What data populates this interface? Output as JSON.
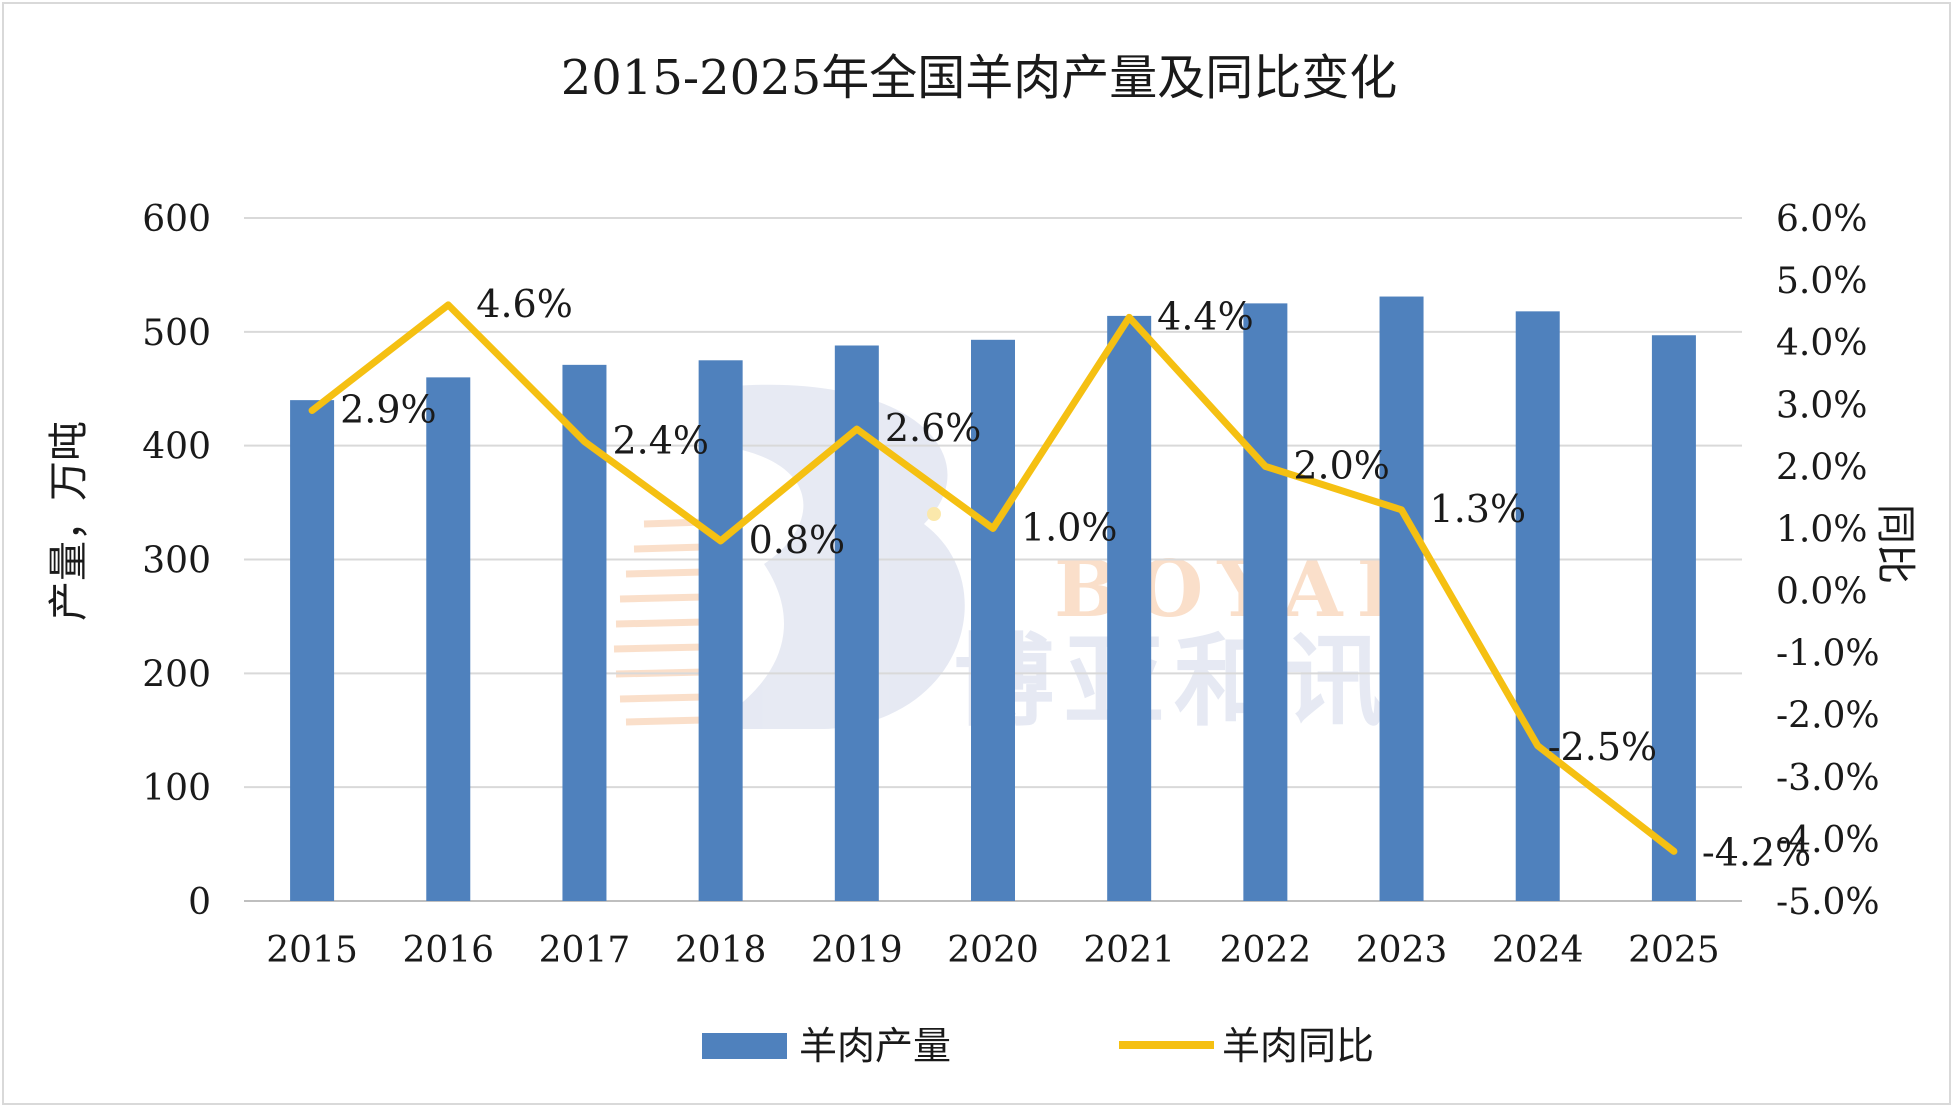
{
  "chart_data": {
    "type": "bar",
    "title": "2015-2025年全国羊肉产量及同比变化",
    "categories": [
      "2015",
      "2016",
      "2017",
      "2018",
      "2019",
      "2020",
      "2021",
      "2022",
      "2023",
      "2024",
      "2025"
    ],
    "series": [
      {
        "name": "羊肉产量",
        "type": "bar",
        "axis": "left",
        "color": "#4f81bd",
        "values": [
          440,
          460,
          471,
          475,
          488,
          493,
          514,
          525,
          531,
          518,
          497
        ]
      },
      {
        "name": "羊肉同比",
        "type": "line",
        "axis": "right",
        "color": "#f5c012",
        "values": [
          2.9,
          4.6,
          2.4,
          0.8,
          2.6,
          1.0,
          4.4,
          2.0,
          1.3,
          -2.5,
          -4.2
        ],
        "labels": [
          "2.9%",
          "4.6%",
          "2.4%",
          "0.8%",
          "2.6%",
          "1.0%",
          "4.4%",
          "2.0%",
          "1.3%",
          "-2.5%",
          "-4.2%"
        ]
      }
    ],
    "ylabel": "产量，万吨",
    "y2label": "同比",
    "ylim": [
      0,
      600
    ],
    "yticks": [
      "0",
      "100",
      "200",
      "300",
      "400",
      "500",
      "600"
    ],
    "y2lim": [
      -5.0,
      6.0
    ],
    "y2ticks": [
      "-5.0%",
      "-4.0%",
      "-3.0%",
      "-2.0%",
      "-1.0%",
      "0.0%",
      "1.0%",
      "2.0%",
      "3.0%",
      "4.0%",
      "5.0%",
      "6.0%"
    ],
    "grid": true,
    "legend": "bottom",
    "gridColor": "#d9d9d9",
    "axisColor": "#bfbfbf"
  },
  "watermark": {
    "latin": "BOYAR",
    "chinese": "博亚和讯"
  }
}
